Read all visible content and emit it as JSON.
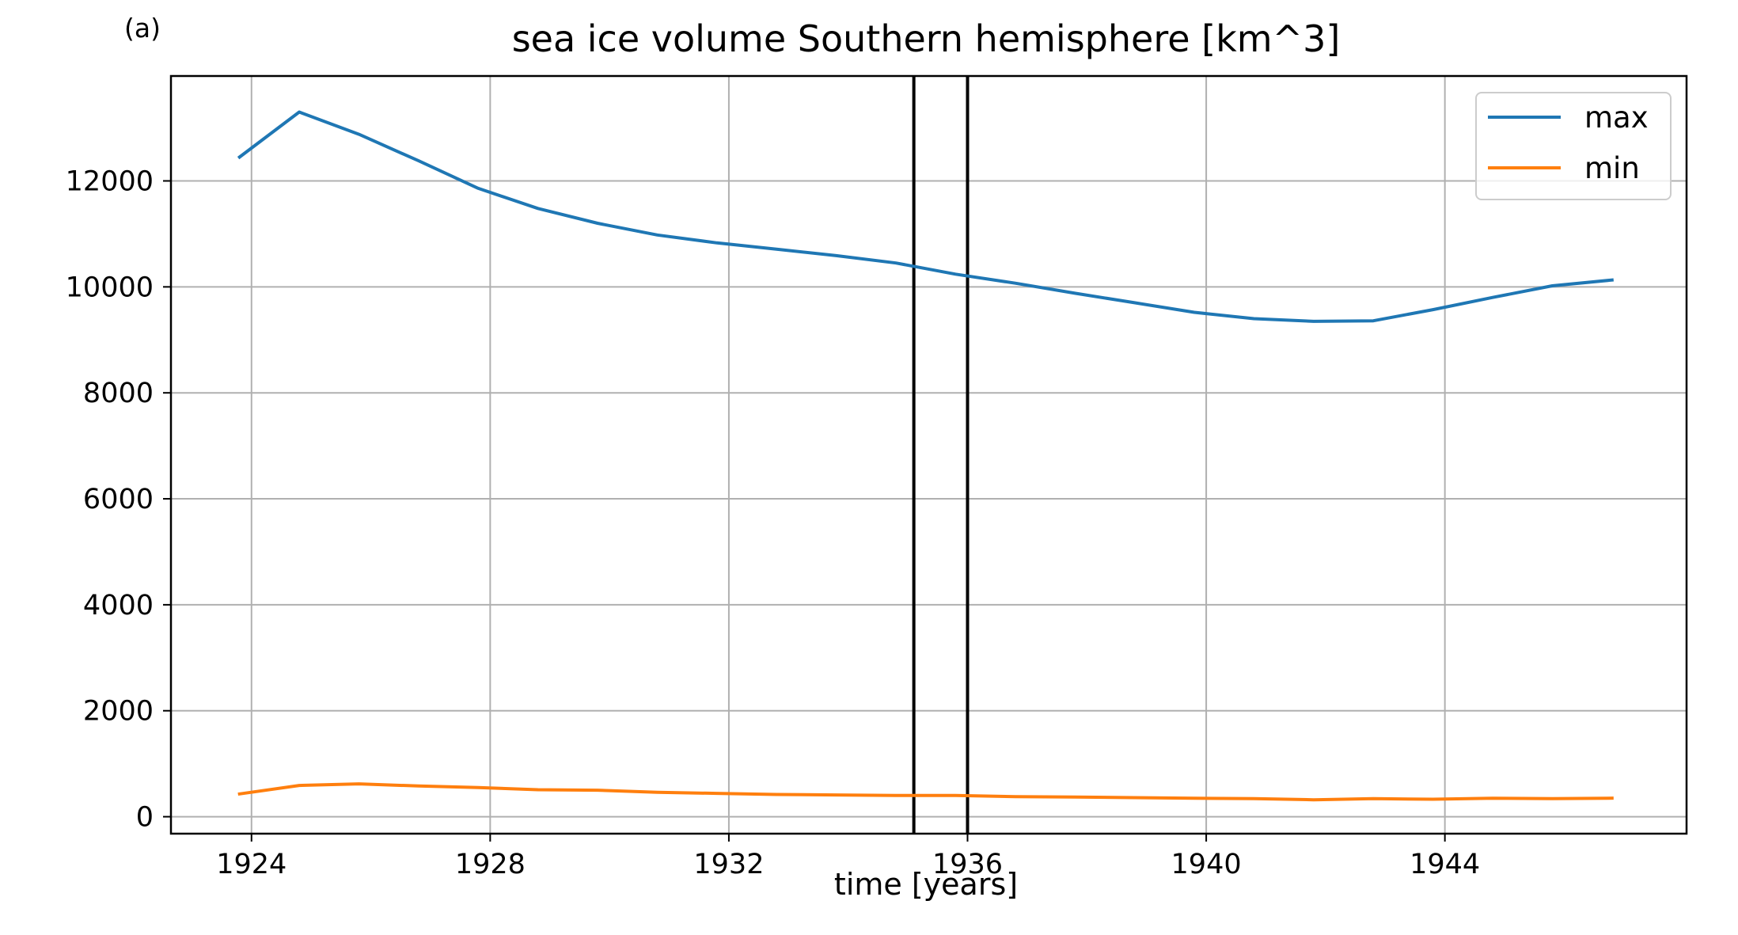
{
  "panel_label": "(a)",
  "colors": {
    "max": "#1f77b4",
    "min": "#ff7f0e",
    "marker": "#000000",
    "grid": "#b0b0b0"
  },
  "chart_data": {
    "type": "line",
    "title": "sea ice volume Southern hemisphere [km^3]",
    "xlabel": "time [years]",
    "ylabel": "",
    "xlim": [
      1922.65,
      1948.05
    ],
    "ylim": [
      -320,
      13980
    ],
    "x_ticks": [
      1924,
      1928,
      1932,
      1936,
      1940,
      1944
    ],
    "x_tick_labels": [
      "1924",
      "1928",
      "1932",
      "1936",
      "1940",
      "1944"
    ],
    "y_ticks": [
      0,
      2000,
      4000,
      6000,
      8000,
      10000,
      12000
    ],
    "y_tick_labels": [
      "0",
      "2000",
      "4000",
      "6000",
      "8000",
      "10000",
      "12000"
    ],
    "grid": true,
    "legend": "top-right",
    "vertical_lines": [
      1935.1,
      1936.0
    ],
    "x": [
      1923.8,
      1924.8,
      1925.8,
      1926.8,
      1927.8,
      1928.8,
      1929.8,
      1930.8,
      1931.8,
      1932.8,
      1933.8,
      1934.8,
      1935.8,
      1936.8,
      1937.8,
      1938.8,
      1939.8,
      1940.8,
      1941.8,
      1942.8,
      1943.8,
      1944.8,
      1945.8,
      1946.8
    ],
    "series": [
      {
        "name": "max",
        "color": "#1f77b4",
        "values": [
          12450,
          13300,
          12880,
          12380,
          11860,
          11480,
          11200,
          10980,
          10830,
          10710,
          10590,
          10450,
          10240,
          10070,
          9880,
          9700,
          9520,
          9400,
          9350,
          9360,
          9570,
          9800,
          10020,
          10130
        ]
      },
      {
        "name": "min",
        "color": "#ff7f0e",
        "values": [
          430,
          590,
          620,
          580,
          550,
          510,
          500,
          460,
          440,
          420,
          410,
          400,
          400,
          380,
          370,
          360,
          350,
          340,
          320,
          340,
          330,
          350,
          340,
          350
        ]
      }
    ]
  }
}
